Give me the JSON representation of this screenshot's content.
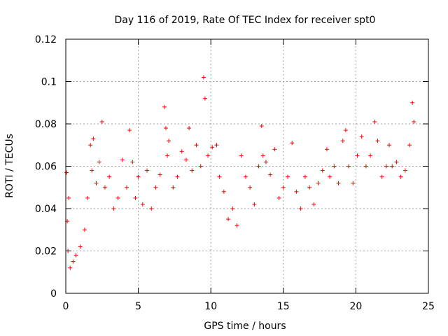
{
  "chart_data": {
    "type": "scatter",
    "title": "Day 116 of 2019, Rate Of TEC Index for receiver spt0",
    "xlabel": "GPS time / hours",
    "ylabel": "ROTI / TECUs",
    "xlim": [
      0,
      25
    ],
    "ylim": [
      0,
      0.12
    ],
    "xticks": [
      0,
      5,
      10,
      15,
      20,
      25
    ],
    "xtick_labels": [
      "0",
      "5",
      "10",
      "15",
      "20",
      "25"
    ],
    "yticks": [
      0,
      0.02,
      0.04,
      0.06,
      0.08,
      0.1,
      0.12
    ],
    "ytick_labels": [
      "0",
      "0.02",
      "0.04",
      "0.06",
      "0.08",
      "0.1",
      "0.12"
    ],
    "grid": true,
    "marker": "plus",
    "marker_color": "#ff0000",
    "series": [
      {
        "name": "ROTI",
        "x": [
          0.05,
          0.1,
          0.15,
          0.2,
          0.3,
          0.5,
          0.7,
          1.0,
          1.3,
          1.5,
          1.7,
          1.8,
          1.9,
          2.1,
          2.3,
          2.5,
          2.7,
          3.0,
          3.3,
          3.6,
          3.9,
          4.2,
          4.4,
          4.6,
          4.8,
          5.0,
          5.3,
          5.6,
          5.9,
          6.2,
          6.5,
          6.8,
          6.9,
          7.0,
          7.1,
          7.4,
          7.7,
          8.0,
          8.3,
          8.5,
          8.7,
          9.0,
          9.3,
          9.5,
          9.6,
          9.8,
          10.1,
          10.4,
          10.6,
          10.9,
          11.2,
          11.5,
          11.8,
          12.1,
          12.4,
          12.7,
          13.0,
          13.3,
          13.5,
          13.6,
          13.8,
          14.1,
          14.4,
          14.7,
          15.0,
          15.3,
          15.6,
          15.9,
          16.2,
          16.5,
          16.8,
          17.1,
          17.4,
          17.7,
          18.0,
          18.2,
          18.5,
          18.8,
          19.1,
          19.3,
          19.5,
          19.8,
          20.1,
          20.4,
          20.7,
          21.0,
          21.3,
          21.5,
          21.8,
          22.1,
          22.3,
          22.5,
          22.8,
          23.1,
          23.4,
          23.7,
          23.9,
          24.0
        ],
        "y": [
          0.057,
          0.034,
          0.02,
          0.045,
          0.012,
          0.015,
          0.018,
          0.022,
          0.03,
          0.045,
          0.07,
          0.058,
          0.073,
          0.052,
          0.062,
          0.081,
          0.05,
          0.055,
          0.04,
          0.045,
          0.063,
          0.05,
          0.077,
          0.062,
          0.045,
          0.055,
          0.042,
          0.058,
          0.04,
          0.05,
          0.056,
          0.088,
          0.078,
          0.065,
          0.072,
          0.05,
          0.055,
          0.067,
          0.063,
          0.078,
          0.058,
          0.07,
          0.06,
          0.102,
          0.092,
          0.065,
          0.069,
          0.07,
          0.055,
          0.048,
          0.035,
          0.04,
          0.032,
          0.065,
          0.055,
          0.05,
          0.042,
          0.06,
          0.079,
          0.065,
          0.062,
          0.056,
          0.068,
          0.045,
          0.05,
          0.055,
          0.071,
          0.048,
          0.04,
          0.055,
          0.05,
          0.042,
          0.052,
          0.058,
          0.068,
          0.055,
          0.06,
          0.052,
          0.072,
          0.077,
          0.06,
          0.052,
          0.065,
          0.074,
          0.06,
          0.065,
          0.081,
          0.072,
          0.055,
          0.06,
          0.07,
          0.06,
          0.062,
          0.055,
          0.058,
          0.07,
          0.09,
          0.081
        ]
      }
    ]
  }
}
